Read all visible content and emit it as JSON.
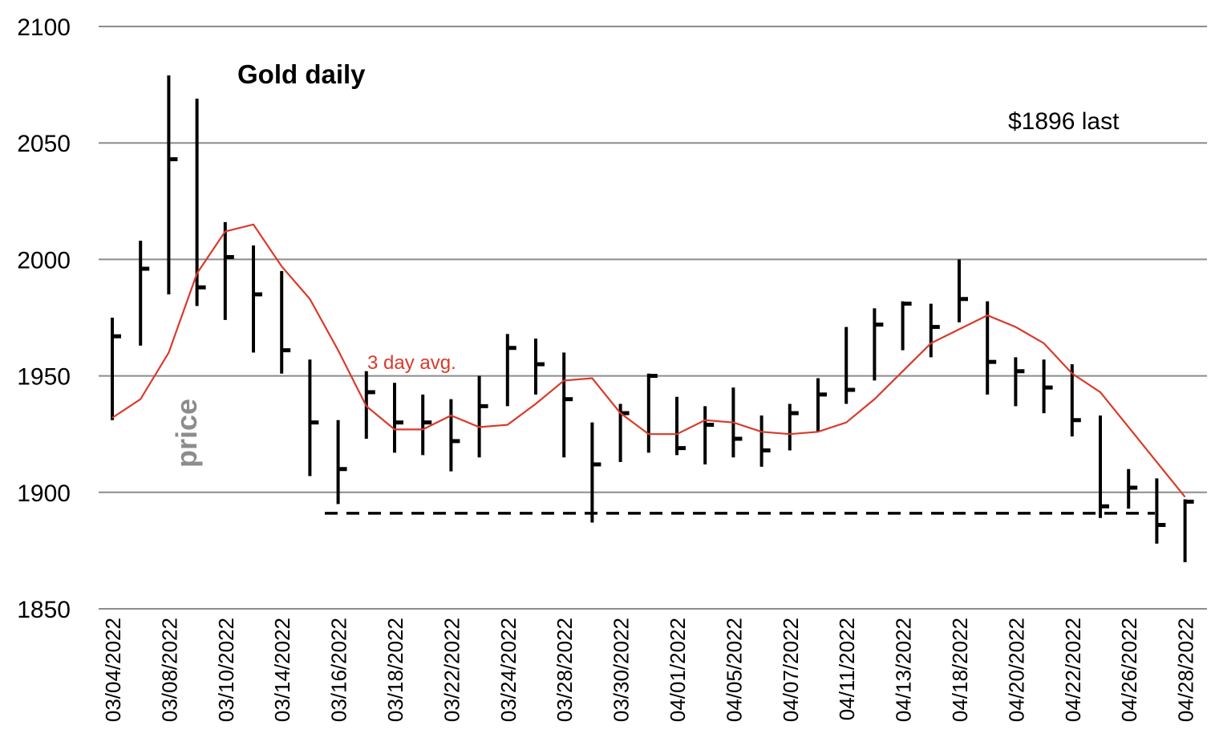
{
  "chart_data": {
    "type": "ohlc",
    "title": "Gold daily",
    "ylabel": "price",
    "ylim": [
      1850,
      2100
    ],
    "yticks": [
      1850,
      1900,
      1950,
      2000,
      2050,
      2100
    ],
    "grid": true,
    "colors": {
      "bars": "#000000",
      "avg_line": "#d93a2b",
      "grid": "#8c8c8c",
      "ylabel": "#8c8c8c"
    },
    "x_tick_labels": [
      "03/04/2022",
      "03/08/2022",
      "03/10/2022",
      "03/14/2022",
      "03/16/2022",
      "03/18/2022",
      "03/22/2022",
      "03/24/2022",
      "03/28/2022",
      "03/30/2022",
      "04/01/2022",
      "04/05/2022",
      "04/07/2022",
      "04/11/2022",
      "04/13/2022",
      "04/18/2022",
      "04/20/2022",
      "04/22/2022",
      "04/26/2022",
      "04/28/2022"
    ],
    "bars": [
      {
        "high": 1975,
        "low": 1931,
        "close": 1967
      },
      {
        "high": 2008,
        "low": 1963,
        "close": 1996
      },
      {
        "high": 2079,
        "low": 1985,
        "close": 2043
      },
      {
        "high": 2069,
        "low": 1980,
        "close": 1988
      },
      {
        "high": 2016,
        "low": 1974,
        "close": 2001
      },
      {
        "high": 2006,
        "low": 1960,
        "close": 1985
      },
      {
        "high": 1995,
        "low": 1951,
        "close": 1961
      },
      {
        "high": 1957,
        "low": 1907,
        "close": 1930
      },
      {
        "high": 1931,
        "low": 1895,
        "close": 1910
      },
      {
        "high": 1952,
        "low": 1923,
        "close": 1943
      },
      {
        "high": 1947,
        "low": 1917,
        "close": 1930
      },
      {
        "high": 1942,
        "low": 1916,
        "close": 1930
      },
      {
        "high": 1940,
        "low": 1909,
        "close": 1922
      },
      {
        "high": 1950,
        "low": 1915,
        "close": 1937
      },
      {
        "high": 1968,
        "low": 1937,
        "close": 1962
      },
      {
        "high": 1966,
        "low": 1942,
        "close": 1955
      },
      {
        "high": 1960,
        "low": 1915,
        "close": 1940
      },
      {
        "high": 1930,
        "low": 1887,
        "close": 1912
      },
      {
        "high": 1938,
        "low": 1913,
        "close": 1934
      },
      {
        "high": 1951,
        "low": 1917,
        "close": 1950
      },
      {
        "high": 1941,
        "low": 1916,
        "close": 1919
      },
      {
        "high": 1937,
        "low": 1912,
        "close": 1929
      },
      {
        "high": 1945,
        "low": 1915,
        "close": 1923
      },
      {
        "high": 1933,
        "low": 1911,
        "close": 1918
      },
      {
        "high": 1938,
        "low": 1918,
        "close": 1934
      },
      {
        "high": 1949,
        "low": 1926,
        "close": 1942
      },
      {
        "high": 1971,
        "low": 1938,
        "close": 1944
      },
      {
        "high": 1979,
        "low": 1948,
        "close": 1972
      },
      {
        "high": 1982,
        "low": 1961,
        "close": 1981
      },
      {
        "high": 1981,
        "low": 1958,
        "close": 1971
      },
      {
        "high": 2000,
        "low": 1973,
        "close": 1983
      },
      {
        "high": 1982,
        "low": 1942,
        "close": 1956
      },
      {
        "high": 1958,
        "low": 1937,
        "close": 1952
      },
      {
        "high": 1957,
        "low": 1934,
        "close": 1945
      },
      {
        "high": 1955,
        "low": 1924,
        "close": 1931
      },
      {
        "high": 1933,
        "low": 1889,
        "close": 1894
      },
      {
        "high": 1910,
        "low": 1893,
        "close": 1902
      },
      {
        "high": 1906,
        "low": 1878,
        "close": 1886
      },
      {
        "high": 1897,
        "low": 1870,
        "close": 1896
      }
    ],
    "avg_series": {
      "name": "3 day avg.",
      "values": [
        1932,
        1940,
        1960,
        1994,
        2012,
        2015,
        1997,
        1983,
        1961,
        1937,
        1927,
        1927,
        1933,
        1928,
        1929,
        1938,
        1948,
        1949,
        1934,
        1925,
        1925,
        1931,
        1930,
        1926,
        1925,
        1926,
        1930,
        1940,
        1952,
        1964,
        1970,
        1976,
        1971,
        1964,
        1951,
        1943,
        1928,
        1913,
        1898
      ]
    },
    "support_line": {
      "y": 1891,
      "style": "dashed"
    },
    "annotations": {
      "avg_label": "3 day avg.",
      "last_price": "$1896 last"
    }
  }
}
